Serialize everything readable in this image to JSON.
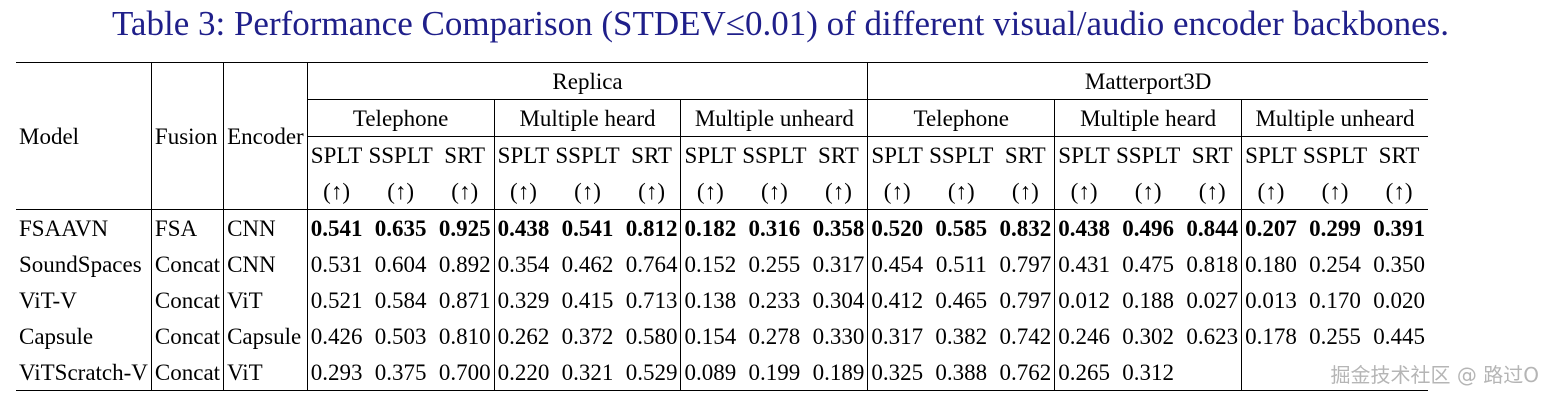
{
  "caption": "Table 3: Performance Comparison (STDEV≤0.01) of different visual/audio encoder backbones.",
  "headers": {
    "model": "Model",
    "fusion": "Fusion",
    "encoder": "Encoder",
    "datasets": [
      "Replica",
      "Matterport3D"
    ],
    "settings": [
      "Telephone",
      "Multiple heard",
      "Multiple unheard",
      "Telephone",
      "Multiple heard",
      "Multiple unheard"
    ],
    "metrics": [
      "SPLT",
      "SSPLT",
      "SRT"
    ],
    "arrow": "(↑)"
  },
  "rows": [
    {
      "model": "FSAAVN",
      "fusion": "FSA",
      "encoder": "CNN",
      "bold": true,
      "values": [
        "0.541",
        "0.635",
        "0.925",
        "0.438",
        "0.541",
        "0.812",
        "0.182",
        "0.316",
        "0.358",
        "0.520",
        "0.585",
        "0.832",
        "0.438",
        "0.496",
        "0.844",
        "0.207",
        "0.299",
        "0.391"
      ]
    },
    {
      "model": "SoundSpaces",
      "fusion": "Concat",
      "encoder": "CNN",
      "bold": false,
      "values": [
        "0.531",
        "0.604",
        "0.892",
        "0.354",
        "0.462",
        "0.764",
        "0.152",
        "0.255",
        "0.317",
        "0.454",
        "0.511",
        "0.797",
        "0.431",
        "0.475",
        "0.818",
        "0.180",
        "0.254",
        "0.350"
      ]
    },
    {
      "model": "ViT-V",
      "fusion": "Concat",
      "encoder": "ViT",
      "bold": false,
      "values": [
        "0.521",
        "0.584",
        "0.871",
        "0.329",
        "0.415",
        "0.713",
        "0.138",
        "0.233",
        "0.304",
        "0.412",
        "0.465",
        "0.797",
        "0.012",
        "0.188",
        "0.027",
        "0.013",
        "0.170",
        "0.020"
      ]
    },
    {
      "model": "Capsule",
      "fusion": "Concat",
      "encoder": "Capsule",
      "bold": false,
      "values": [
        "0.426",
        "0.503",
        "0.810",
        "0.262",
        "0.372",
        "0.580",
        "0.154",
        "0.278",
        "0.330",
        "0.317",
        "0.382",
        "0.742",
        "0.246",
        "0.302",
        "0.623",
        "0.178",
        "0.255",
        "0.445"
      ]
    },
    {
      "model": "ViTScratch-V",
      "fusion": "Concat",
      "encoder": "ViT",
      "bold": false,
      "values": [
        "0.293",
        "0.375",
        "0.700",
        "0.220",
        "0.321",
        "0.529",
        "0.089",
        "0.199",
        "0.189",
        "0.325",
        "0.388",
        "0.762",
        "0.265",
        "0.312",
        "",
        "",
        "",
        ""
      ]
    }
  ],
  "watermark": "掘金技术社区 @ 路过O"
}
